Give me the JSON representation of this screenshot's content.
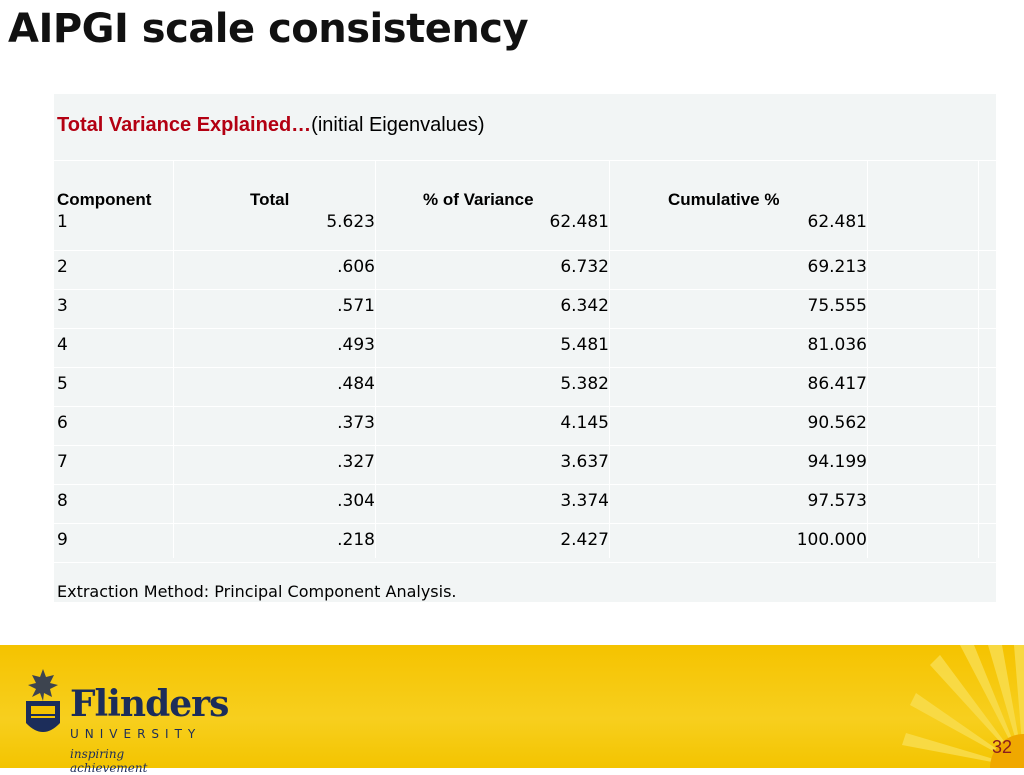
{
  "slide": {
    "title": "AIPGI scale consistency",
    "page_number": "32"
  },
  "table": {
    "caption_main": "Total Variance Explained…",
    "caption_sub": "(initial Eigenvalues)",
    "headers": [
      "Component",
      "Total",
      "% of Variance",
      "Cumulative %"
    ],
    "rows": [
      [
        "1",
        "5.623",
        "62.481",
        "62.481"
      ],
      [
        "2",
        ".606",
        "6.732",
        "69.213"
      ],
      [
        "3",
        ".571",
        "6.342",
        "75.555"
      ],
      [
        "4",
        ".493",
        "5.481",
        "81.036"
      ],
      [
        "5",
        ".484",
        "5.382",
        "86.417"
      ],
      [
        "6",
        ".373",
        "4.145",
        "90.562"
      ],
      [
        "7",
        ".327",
        "3.637",
        "94.199"
      ],
      [
        "8",
        ".304",
        "3.374",
        "97.573"
      ],
      [
        "9",
        ".218",
        "2.427",
        "100.000"
      ]
    ],
    "footnote": "Extraction Method: Principal Component Analysis."
  },
  "footer": {
    "brand_name": "Flinders",
    "brand_sub": "UNIVERSITY",
    "tagline": "inspiring achievement",
    "brand_color": "#1c2d5a",
    "band_color": "#f5c300"
  }
}
